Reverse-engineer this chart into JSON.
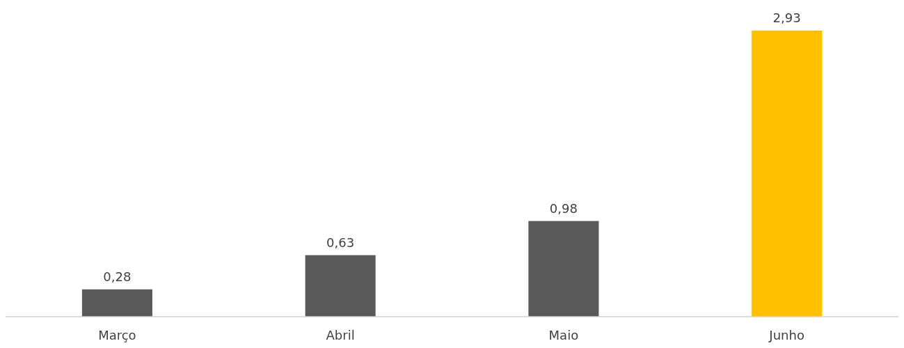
{
  "chart_data": {
    "type": "bar",
    "categories": [
      "Março",
      "Abril",
      "Maio",
      "Junho"
    ],
    "values": [
      0.28,
      0.63,
      0.98,
      2.93
    ],
    "colors": [
      "#595959",
      "#595959",
      "#595959",
      "#ffc000"
    ],
    "value_labels": [
      "0,28",
      "0,63",
      "0,98",
      "2,93"
    ]
  }
}
